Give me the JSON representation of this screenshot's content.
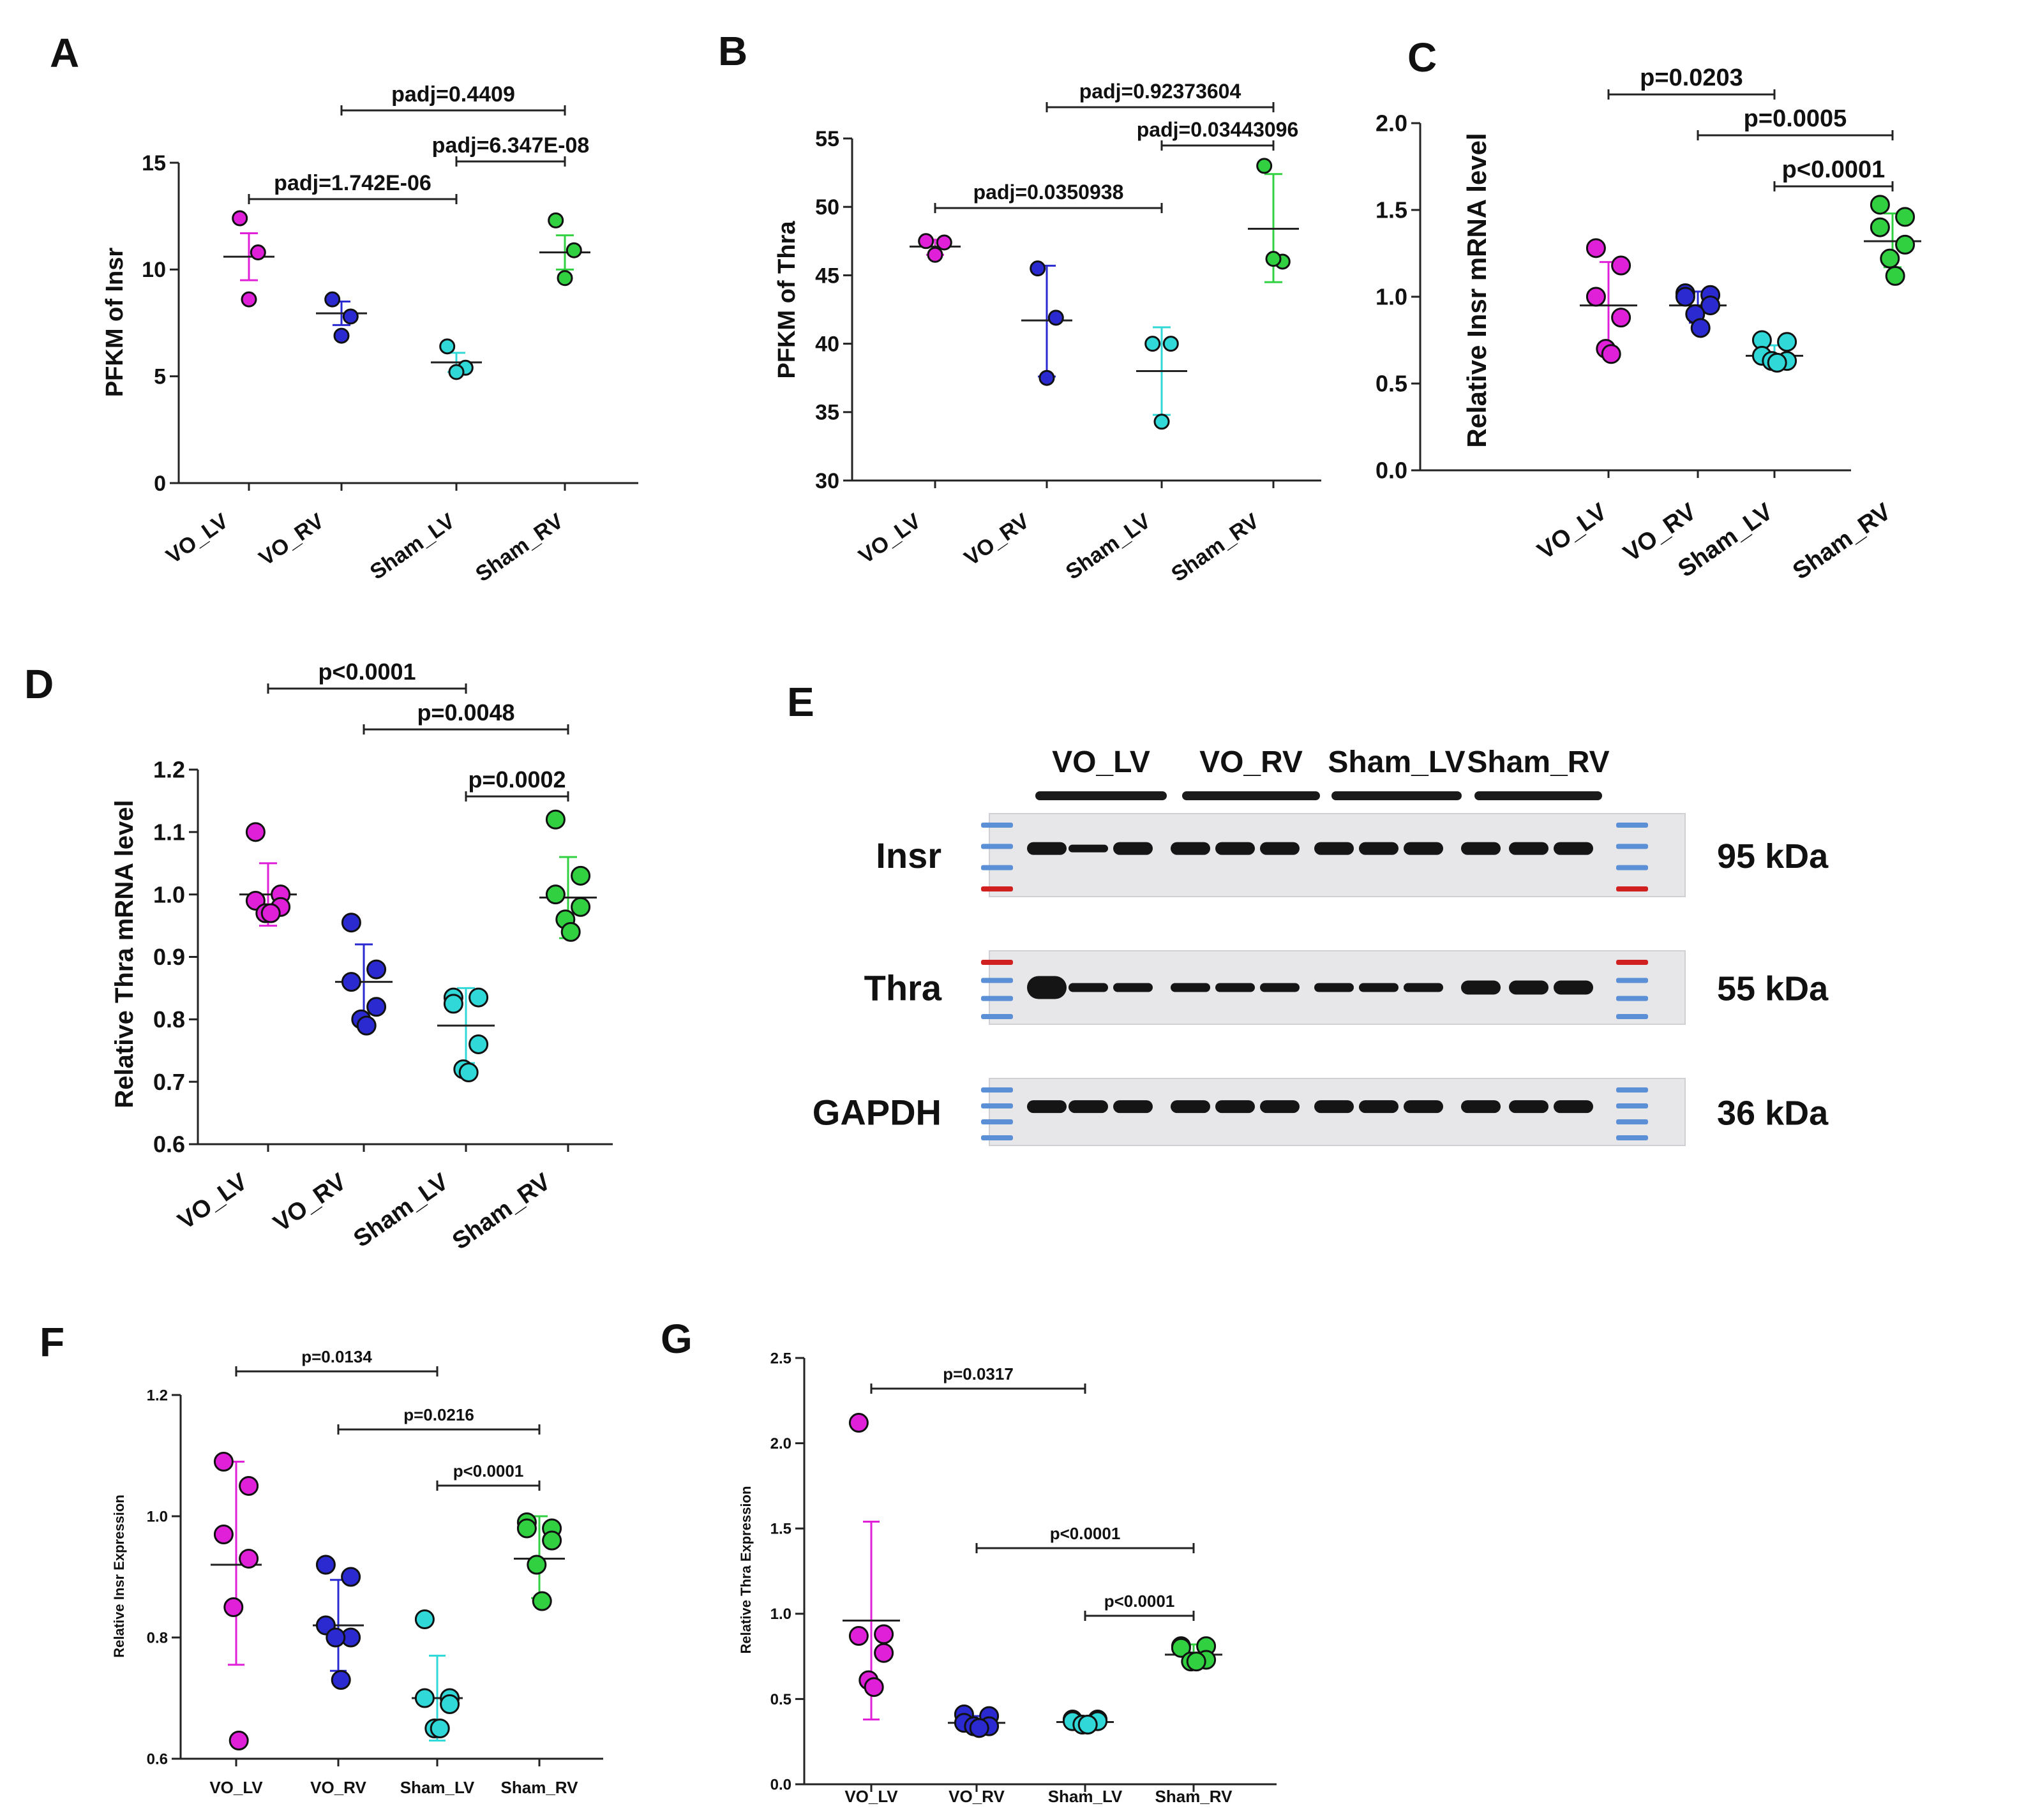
{
  "colors": {
    "VO_LV": "#e020d8",
    "VO_RV": "#2a2ad0",
    "Sham_LV": "#30d8d8",
    "Sham_RV": "#30d040"
  },
  "chart_data": [
    {
      "id": "A",
      "letter": "A",
      "type": "scatter",
      "ylabel": "PFKM of Insr",
      "ylim": [
        0,
        15
      ],
      "yticks": [
        0,
        5,
        10,
        15
      ],
      "yticklabels": [
        "0",
        "5",
        "10",
        "15"
      ],
      "groups": [
        "VO_LV",
        "VO_RV",
        "Sham_LV",
        "Sham_RV"
      ],
      "points": [
        [
          12.4,
          10.8,
          8.6
        ],
        [
          8.6,
          7.8,
          6.9
        ],
        [
          6.4,
          5.4,
          5.2
        ],
        [
          12.3,
          10.9,
          9.6
        ]
      ],
      "means": [
        10.6,
        7.95,
        5.65,
        10.8
      ],
      "errors": [
        [
          9.5,
          11.7
        ],
        [
          7.4,
          8.5
        ],
        [
          5.2,
          6.1
        ],
        [
          10.0,
          11.6
        ]
      ],
      "comparisons": [
        {
          "from": 0,
          "to": 2,
          "label": "padj=1.742E-06"
        },
        {
          "from": 1,
          "to": 3,
          "label": "padj=0.4409"
        },
        {
          "from": 2,
          "to": 3,
          "label": "padj=6.347E-08"
        }
      ]
    },
    {
      "id": "B",
      "letter": "B",
      "type": "scatter",
      "ylabel": "PFKM of Thra",
      "ylim": [
        30,
        55
      ],
      "yticks": [
        30,
        35,
        40,
        45,
        50,
        55
      ],
      "yticklabels": [
        "30",
        "35",
        "40",
        "45",
        "50",
        "55"
      ],
      "groups": [
        "VO_LV",
        "VO_RV",
        "Sham_LV",
        "Sham_RV"
      ],
      "points": [
        [
          47.5,
          47.4,
          46.5
        ],
        [
          45.5,
          41.9,
          37.5
        ],
        [
          40.0,
          40.0,
          34.3
        ],
        [
          53.0,
          46.0,
          46.2
        ]
      ],
      "means": [
        47.1,
        41.7,
        38.0,
        48.4
      ],
      "errors": [
        [
          46.5,
          47.6
        ],
        [
          37.6,
          45.7
        ],
        [
          34.8,
          41.2
        ],
        [
          44.5,
          52.4
        ]
      ],
      "comparisons": [
        {
          "from": 0,
          "to": 2,
          "label": "padj=0.0350938"
        },
        {
          "from": 1,
          "to": 3,
          "label": "padj=0.92373604"
        },
        {
          "from": 2,
          "to": 3,
          "label": "padj=0.03443096"
        }
      ]
    },
    {
      "id": "C",
      "letter": "C",
      "type": "scatter",
      "ylabel": "Relative Insr mRNA level",
      "ylim": [
        0,
        2.0
      ],
      "yticks": [
        0,
        0.5,
        1.0,
        1.5,
        2.0
      ],
      "yticklabels": [
        "0.0",
        "0.5",
        "1.0",
        "1.5",
        "2.0"
      ],
      "groups": [
        "VO_LV",
        "VO_RV",
        "Sham_LV",
        "Sham_RV"
      ],
      "points": [
        [
          1.28,
          1.18,
          1.0,
          0.88,
          0.7,
          0.67
        ],
        [
          1.02,
          1.01,
          1.0,
          0.95,
          0.9,
          0.82
        ],
        [
          0.75,
          0.74,
          0.66,
          0.63,
          0.63,
          0.62
        ],
        [
          1.53,
          1.46,
          1.4,
          1.3,
          1.22,
          1.12
        ]
      ],
      "means": [
        0.95,
        0.95,
        0.66,
        1.32
      ],
      "errors": [
        [
          0.71,
          1.2
        ],
        [
          0.85,
          1.03
        ],
        [
          0.61,
          0.72
        ],
        [
          1.17,
          1.48
        ]
      ],
      "comparisons": [
        {
          "from": 0,
          "to": 2,
          "label": "p=0.0203"
        },
        {
          "from": 1,
          "to": 3,
          "label": "p=0.0005"
        },
        {
          "from": 2,
          "to": 3,
          "label": "p<0.0001"
        }
      ]
    },
    {
      "id": "D",
      "letter": "D",
      "type": "scatter",
      "ylabel": "Relative Thra mRNA level",
      "ylim": [
        0.6,
        1.2
      ],
      "yticks": [
        0.6,
        0.7,
        0.8,
        0.9,
        1.0,
        1.1,
        1.2
      ],
      "yticklabels": [
        "0.6",
        "0.7",
        "0.8",
        "0.9",
        "1.0",
        "1.1",
        "1.2"
      ],
      "groups": [
        "VO_LV",
        "VO_RV",
        "Sham_LV",
        "Sham_RV"
      ],
      "points": [
        [
          1.1,
          1.0,
          0.99,
          0.98,
          0.97,
          0.97
        ],
        [
          0.955,
          0.88,
          0.86,
          0.82,
          0.8,
          0.79
        ],
        [
          0.835,
          0.835,
          0.825,
          0.76,
          0.72,
          0.715
        ],
        [
          1.12,
          1.03,
          1.0,
          0.98,
          0.96,
          0.94
        ]
      ],
      "means": [
        1.0,
        0.86,
        0.79,
        0.995
      ],
      "errors": [
        [
          0.95,
          1.05
        ],
        [
          0.8,
          0.92
        ],
        [
          0.73,
          0.85
        ],
        [
          0.93,
          1.06
        ]
      ],
      "comparisons": [
        {
          "from": 0,
          "to": 2,
          "label": "p<0.0001"
        },
        {
          "from": 1,
          "to": 3,
          "label": "p=0.0048"
        },
        {
          "from": 2,
          "to": 3,
          "label": "p=0.0002"
        }
      ]
    },
    {
      "id": "F",
      "letter": "F",
      "type": "scatter",
      "ylabel": "Relative Insr Expression",
      "ylim": [
        0.6,
        1.2
      ],
      "yticks": [
        0.6,
        0.8,
        1.0,
        1.2
      ],
      "yticklabels": [
        "0.6",
        "0.8",
        "1.0",
        "1.2"
      ],
      "groups": [
        "VO_LV",
        "VO_RV",
        "Sham_LV",
        "Sham_RV"
      ],
      "points": [
        [
          1.09,
          1.05,
          0.97,
          0.93,
          0.85,
          0.63
        ],
        [
          0.92,
          0.9,
          0.82,
          0.8,
          0.8,
          0.73
        ],
        [
          0.83,
          0.7,
          0.7,
          0.69,
          0.65,
          0.65
        ],
        [
          0.99,
          0.98,
          0.98,
          0.96,
          0.92,
          0.86
        ]
      ],
      "means": [
        0.92,
        0.82,
        0.7,
        0.93
      ],
      "errors": [
        [
          0.755,
          1.09
        ],
        [
          0.745,
          0.895
        ],
        [
          0.63,
          0.77
        ],
        [
          0.865,
          1.0
        ]
      ],
      "comparisons": [
        {
          "from": 0,
          "to": 2,
          "label": "p=0.0134"
        },
        {
          "from": 1,
          "to": 3,
          "label": "p=0.0216"
        },
        {
          "from": 2,
          "to": 3,
          "label": "p<0.0001"
        }
      ]
    },
    {
      "id": "G",
      "letter": "G",
      "type": "scatter",
      "ylabel": "Relative Thra Expression",
      "ylim": [
        0,
        2.5
      ],
      "yticks": [
        0,
        0.5,
        1.0,
        1.5,
        2.0,
        2.5
      ],
      "yticklabels": [
        "0.0",
        "0.5",
        "1.0",
        "1.5",
        "2.0",
        "2.5"
      ],
      "groups": [
        "VO_LV",
        "VO_RV",
        "Sham_LV",
        "Sham_RV"
      ],
      "points": [
        [
          2.12,
          0.88,
          0.87,
          0.77,
          0.61,
          0.57
        ],
        [
          0.41,
          0.4,
          0.36,
          0.34,
          0.34,
          0.33
        ],
        [
          0.38,
          0.38,
          0.37,
          0.37,
          0.35,
          0.35
        ],
        [
          0.81,
          0.81,
          0.8,
          0.73,
          0.72,
          0.72
        ]
      ],
      "means": [
        0.96,
        0.36,
        0.365,
        0.76
      ],
      "errors": [
        [
          0.38,
          1.54
        ],
        [
          0.33,
          0.4
        ],
        [
          0.34,
          0.39
        ],
        [
          0.7,
          0.82
        ]
      ],
      "comparisons": [
        {
          "from": 0,
          "to": 2,
          "label": "p=0.0317"
        },
        {
          "from": 1,
          "to": 3,
          "label": "p<0.0001"
        },
        {
          "from": 2,
          "to": 3,
          "label": "p<0.0001"
        }
      ]
    }
  ],
  "blot": {
    "letter": "E",
    "groups": [
      "VO_LV",
      "VO_RV",
      "Sham_LV",
      "Sham_RV"
    ],
    "rows": [
      {
        "name": "Insr",
        "kda": "95 kDa"
      },
      {
        "name": "Thra",
        "kda": "55 kDa"
      },
      {
        "name": "GAPDH",
        "kda": "36 kDa"
      }
    ]
  }
}
